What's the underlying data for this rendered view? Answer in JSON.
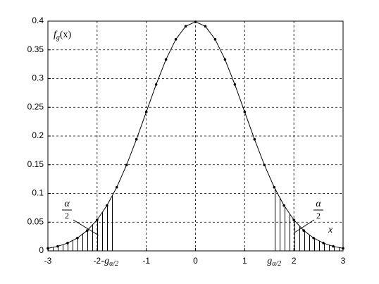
{
  "chart_data": {
    "type": "line",
    "x": [
      -3,
      -2.8,
      -2.6,
      -2.4,
      -2.2,
      -2,
      -1.8,
      -1.6,
      -1.4,
      -1.2,
      -1,
      -0.8,
      -0.6,
      -0.4,
      -0.2,
      0,
      0.2,
      0.4,
      0.6,
      0.8,
      1,
      1.2,
      1.4,
      1.6,
      1.8,
      2,
      2.2,
      2.4,
      2.6,
      2.8,
      3
    ],
    "series": [
      {
        "color": "#000000",
        "values": [
          0.0044,
          0.0079,
          0.0136,
          0.0224,
          0.0355,
          0.054,
          0.079,
          0.1109,
          0.1497,
          0.1942,
          0.242,
          0.2897,
          0.3332,
          0.3683,
          0.391,
          0.3989,
          0.391,
          0.3683,
          0.3332,
          0.2897,
          0.242,
          0.1942,
          0.1497,
          0.1109,
          0.079,
          0.054,
          0.0355,
          0.0224,
          0.0136,
          0.0079,
          0.0044
        ]
      }
    ],
    "xlim": [
      -3,
      3
    ],
    "xticks": [
      -3,
      -2,
      -1,
      0,
      1,
      2,
      3
    ],
    "ylim": [
      0,
      0.4
    ],
    "yticks": [
      0,
      0.05,
      0.1,
      0.15,
      0.2,
      0.25,
      0.3,
      0.35,
      0.4
    ],
    "grid": true,
    "ylabel": {
      "base": "f",
      "sub": "g",
      "arg": "(x)"
    },
    "xlabel": "x",
    "quantile_labels": [
      {
        "x": -1.6,
        "base": "-g",
        "sub": "α/2"
      },
      {
        "x": 1.6,
        "base": "g",
        "sub": "α/2"
      }
    ],
    "tail_labels": [
      {
        "num": "α",
        "den": "2"
      },
      {
        "num": "α",
        "den": "2"
      }
    ]
  }
}
